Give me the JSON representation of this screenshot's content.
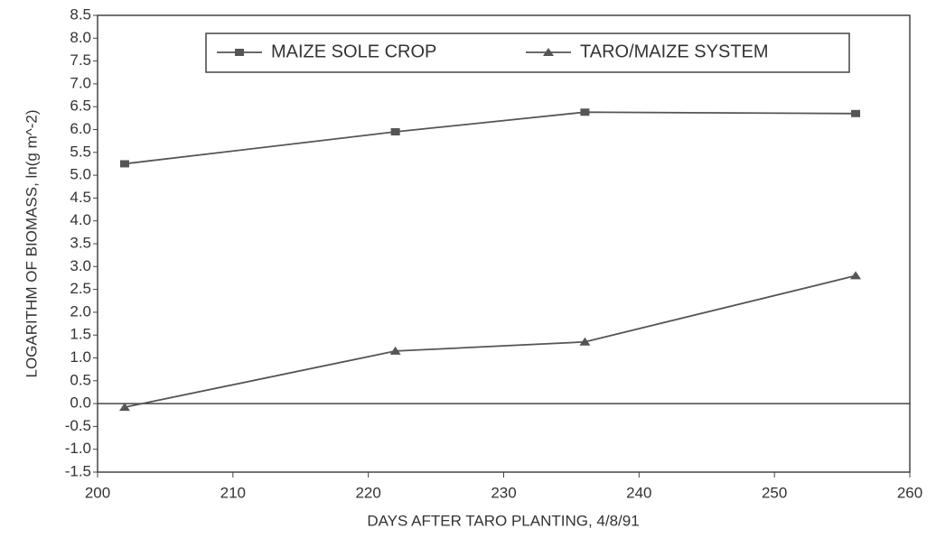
{
  "chart_data": {
    "type": "line",
    "x_label": "DAYS AFTER TARO PLANTING, 4/8/91",
    "y_label": "LOGARITHM OF BIOMASS, ln(g m^-2)",
    "x": [
      202,
      222,
      236,
      256
    ],
    "series": [
      {
        "name": "MAIZE SOLE CROP",
        "color": "#555555",
        "marker": "square",
        "values": [
          5.25,
          5.95,
          6.38,
          6.35
        ]
      },
      {
        "name": "TARO/MAIZE SYSTEM",
        "color": "#555555",
        "marker": "triangle",
        "values": [
          -0.08,
          1.15,
          1.35,
          2.8
        ]
      }
    ],
    "xlim": [
      200,
      260
    ],
    "xticks": [
      200,
      210,
      220,
      230,
      240,
      250,
      260
    ],
    "ylim": [
      -1.5,
      8.5
    ],
    "yticks": [
      {
        "value": -1.5,
        "label": "-1.5"
      },
      {
        "value": -1,
        "label": "-1.0"
      },
      {
        "value": -0.5,
        "label": "-0.5"
      },
      {
        "value": 0,
        "label": "0.0"
      },
      {
        "value": 0.5,
        "label": "0.5"
      },
      {
        "value": 1,
        "label": "1.0"
      },
      {
        "value": 1.5,
        "label": "1.5"
      },
      {
        "value": 2,
        "label": "2.0"
      },
      {
        "value": 2.5,
        "label": "2.5"
      },
      {
        "value": 3,
        "label": "3.0"
      },
      {
        "value": 3.5,
        "label": "3.5"
      },
      {
        "value": 4,
        "label": "4.0"
      },
      {
        "value": 4.5,
        "label": "4.5"
      },
      {
        "value": 5,
        "label": "5.0"
      },
      {
        "value": 5.5,
        "label": "5.5"
      },
      {
        "value": 6,
        "label": "6.0"
      },
      {
        "value": 6.5,
        "label": "6.5"
      },
      {
        "value": 7,
        "label": "7.0"
      },
      {
        "value": 7.5,
        "label": "7.5"
      },
      {
        "value": 8,
        "label": "8.0"
      },
      {
        "value": 8.5,
        "label": "8.5"
      }
    ],
    "grid": false,
    "legend": "top"
  }
}
